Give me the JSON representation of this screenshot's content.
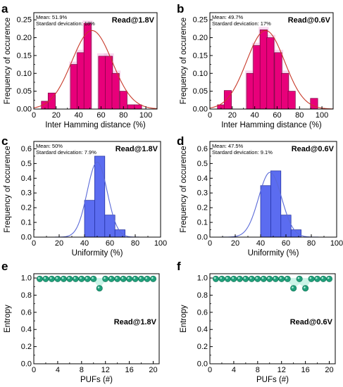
{
  "figure": {
    "colors": {
      "magenta_bar": "#e8007a",
      "magenta_edge": "#7a0040",
      "magenta_highlight": "#f2b6e0",
      "red_curve": "#c83a2a",
      "blue_bar": "#5b6cf0",
      "blue_edge": "#1c2a9a",
      "blue_curve": "#5a6ad8",
      "teal_dot": "#1fa07a",
      "teal_band": "#a8ecd8"
    }
  },
  "chart_data": [
    {
      "panel": "a",
      "type": "bar",
      "annotation": "Read@1.8V",
      "stats": [
        "Mean: 51.9%",
        "Stardard devication: 18%"
      ],
      "xlabel": "Inter Hamming distance (%)",
      "ylabel": "Frequency of occurence",
      "xlim": [
        0,
        110
      ],
      "ylim": [
        0,
        0.27
      ],
      "xticks": [
        0,
        20,
        40,
        60,
        80,
        100
      ],
      "yticks": [
        0.0,
        0.05,
        0.1,
        0.15,
        0.2,
        0.25
      ],
      "bin_width": 6.5,
      "bin_centers": [
        10,
        16,
        36,
        42,
        48,
        61,
        67,
        73,
        80,
        87,
        93
      ],
      "values": [
        0.022,
        0.045,
        0.125,
        0.158,
        0.24,
        0.148,
        0.148,
        0.1,
        0.05,
        0.012,
        0.012
      ],
      "fit_curve": {
        "mean": 51.9,
        "sd": 18,
        "peak": 0.22
      },
      "bar_style": "magenta"
    },
    {
      "panel": "b",
      "type": "bar",
      "annotation": "Read@0.6V",
      "stats": [
        "Mean: 49.7%",
        "Stardard devication: 17%"
      ],
      "xlabel": "Inter Hamming distance (%)",
      "ylabel": "Frequency of occurence",
      "xlim": [
        0,
        110
      ],
      "ylim": [
        0,
        0.27
      ],
      "xticks": [
        0,
        20,
        40,
        60,
        80,
        100
      ],
      "yticks": [
        0.0,
        0.05,
        0.1,
        0.15,
        0.2,
        0.25
      ],
      "bin_width": 6.5,
      "bin_centers": [
        10,
        16,
        36,
        42,
        48,
        54,
        61,
        67,
        73,
        93
      ],
      "values": [
        0.012,
        0.052,
        0.1,
        0.178,
        0.222,
        0.2,
        0.158,
        0.1,
        0.05,
        0.03
      ],
      "fit_curve": {
        "mean": 49.7,
        "sd": 17,
        "peak": 0.22
      },
      "bar_style": "magenta"
    },
    {
      "panel": "c",
      "type": "bar",
      "annotation": "Read@1.8V",
      "stats": [
        "Mean: 50%",
        "Stardard devication: 7.9%"
      ],
      "xlabel": "Uniformity (%)",
      "ylabel": "Frequency of occurence",
      "xlim": [
        0,
        100
      ],
      "ylim": [
        0,
        0.65
      ],
      "xticks": [
        0,
        20,
        40,
        60,
        80,
        100
      ],
      "yticks": [
        0.0,
        0.1,
        0.2,
        0.3,
        0.4,
        0.5,
        0.6
      ],
      "bin_width": 8,
      "bin_centers": [
        44,
        52,
        60,
        68
      ],
      "values": [
        0.25,
        0.55,
        0.15,
        0.05
      ],
      "fit_curve": {
        "mean": 50,
        "sd": 7.9,
        "peak": 0.51
      },
      "bar_style": "blue"
    },
    {
      "panel": "d",
      "type": "bar",
      "annotation": "Read@0.6V",
      "stats": [
        "Mean: 47.5%",
        "Stardard devication: 9.1%"
      ],
      "xlabel": "Uniformity (%)",
      "ylabel": "Frequency of occurence",
      "xlim": [
        0,
        100
      ],
      "ylim": [
        0,
        0.65
      ],
      "xticks": [
        0,
        20,
        40,
        60,
        80,
        100
      ],
      "yticks": [
        0.0,
        0.1,
        0.2,
        0.3,
        0.4,
        0.5,
        0.6
      ],
      "bin_width": 8,
      "bin_centers": [
        44,
        52,
        60,
        68
      ],
      "values": [
        0.35,
        0.45,
        0.15,
        0.05
      ],
      "fit_curve": {
        "mean": 47.5,
        "sd": 9.1,
        "peak": 0.44
      },
      "bar_style": "blue"
    },
    {
      "panel": "e",
      "type": "scatter",
      "annotation": "Read@1.8V",
      "xlabel": "PUFs (#)",
      "ylabel": "Entropy",
      "xlim": [
        0,
        21
      ],
      "ylim": [
        0,
        1.05
      ],
      "xticks": [
        0,
        4,
        8,
        12,
        16,
        20
      ],
      "yticks": [
        0.0,
        0.2,
        0.4,
        0.6,
        0.8,
        1.0
      ],
      "x": [
        1,
        2,
        3,
        4,
        5,
        6,
        7,
        8,
        9,
        10,
        11,
        12,
        13,
        14,
        15,
        16,
        17,
        18,
        19,
        20
      ],
      "values": [
        0.99,
        0.99,
        0.99,
        0.99,
        0.99,
        0.99,
        0.99,
        0.99,
        0.99,
        0.99,
        0.88,
        0.99,
        0.99,
        0.99,
        0.99,
        0.99,
        0.99,
        0.99,
        0.99,
        0.99
      ],
      "band": {
        "lower": [
          0.99,
          0.99,
          0.99,
          0.99,
          0.99,
          0.99,
          0.99,
          0.99,
          0.99,
          0.97,
          0.88,
          0.97,
          0.99,
          0.99,
          0.99,
          0.99,
          0.99,
          0.99,
          0.99,
          0.99
        ],
        "upper": 1.0
      }
    },
    {
      "panel": "f",
      "type": "scatter",
      "annotation": "Read@0.6V",
      "xlabel": "PUFs (#)",
      "ylabel": "Entropy",
      "xlim": [
        0,
        21
      ],
      "ylim": [
        0,
        1.05
      ],
      "xticks": [
        0,
        4,
        8,
        12,
        16,
        20
      ],
      "yticks": [
        0.0,
        0.2,
        0.4,
        0.6,
        0.8,
        1.0
      ],
      "x": [
        1,
        2,
        3,
        4,
        5,
        6,
        7,
        8,
        9,
        10,
        11,
        12,
        13,
        14,
        15,
        16,
        17,
        18,
        19,
        20
      ],
      "values": [
        0.99,
        0.99,
        0.99,
        0.99,
        0.99,
        0.99,
        0.99,
        0.99,
        0.99,
        0.99,
        0.99,
        0.99,
        0.99,
        0.88,
        0.99,
        0.88,
        0.99,
        0.99,
        0.99,
        0.99
      ],
      "band": {
        "lower": [
          0.99,
          0.99,
          0.99,
          0.99,
          0.99,
          0.99,
          0.99,
          0.99,
          0.99,
          0.99,
          0.99,
          0.99,
          0.97,
          0.88,
          0.93,
          0.88,
          0.97,
          0.99,
          0.99,
          0.99
        ],
        "upper": 1.0
      }
    }
  ]
}
